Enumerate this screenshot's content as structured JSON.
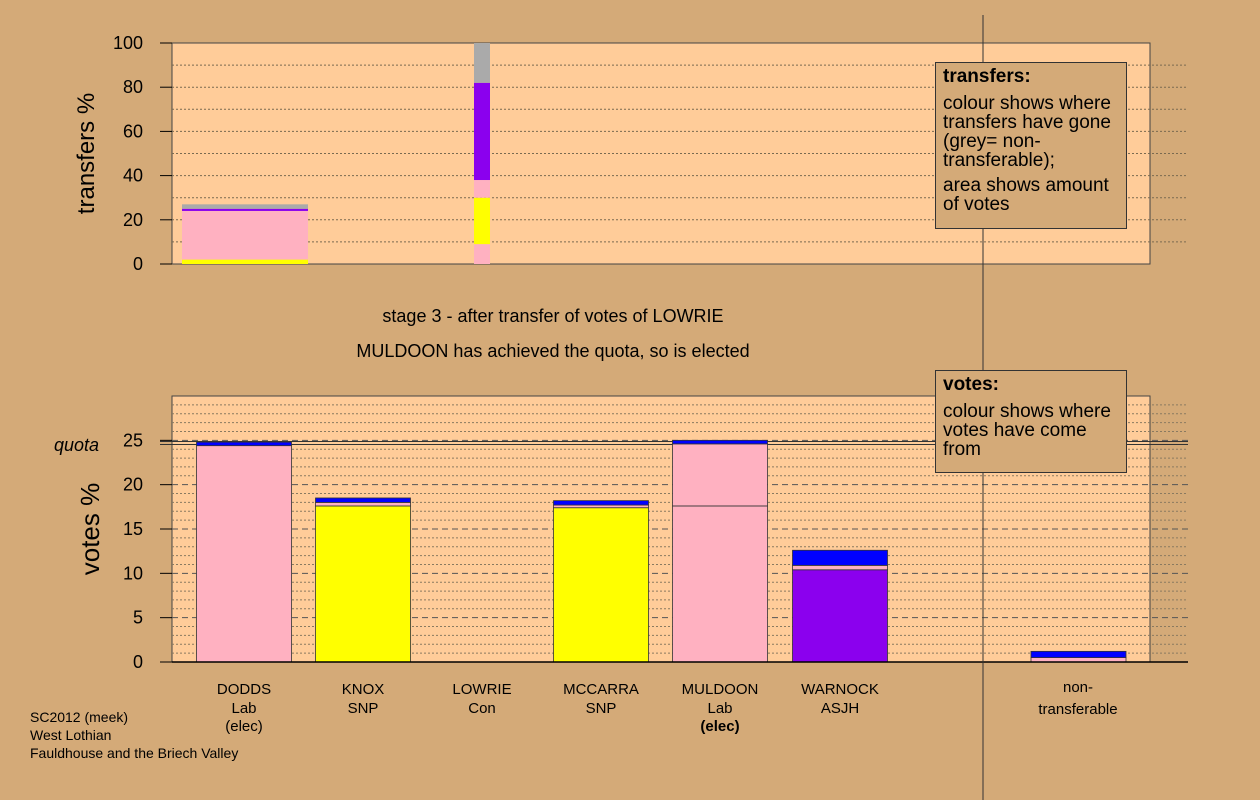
{
  "stage_title": "stage 3 - after transfer of votes of LOWRIE",
  "elected_note": "MULDOON has achieved the quota, so is elected",
  "legend_transfers": {
    "title": "transfers:",
    "p1": "colour shows where transfers have gone (grey= non-transferable);",
    "p2": "area shows amount of votes"
  },
  "legend_votes": {
    "title": "votes:",
    "p1": "colour shows where votes have come from"
  },
  "footer": [
    "SC2012 (meek)",
    "West Lothian",
    "Fauldhouse and the Briech Valley"
  ],
  "colors": {
    "Lab": "#ffb1c1",
    "SNP": "#ffff00",
    "ASJH": "#8b00ee",
    "Con": "#0000ff",
    "nontransferable": "#aaaaaa",
    "plot_bg": "#ffcc99",
    "page_bg": "#d4aa78"
  },
  "chart_data": [
    {
      "type": "bar",
      "ylabel": "transfers %",
      "ylim": [
        0,
        100
      ],
      "yticks": [
        "0",
        "20",
        "40",
        "60",
        "80",
        "100"
      ],
      "bars": [
        {
          "name": "previous-transfers",
          "segments": [
            {
              "party": "SNP",
              "from": 0,
              "to": 2
            },
            {
              "party": "Lab",
              "from": 2,
              "to": 24
            },
            {
              "party": "ASJH",
              "from": 24,
              "to": 25
            },
            {
              "party": "nontransferable",
              "from": 25,
              "to": 27
            }
          ]
        },
        {
          "name": "LOWRIE-transfer",
          "segments": [
            {
              "party": "Lab",
              "from": 0,
              "to": 9
            },
            {
              "party": "SNP",
              "from": 9,
              "to": 30
            },
            {
              "party": "Lab",
              "from": 30,
              "to": 38
            },
            {
              "party": "ASJH",
              "from": 38,
              "to": 82
            },
            {
              "party": "nontransferable",
              "from": 82,
              "to": 100
            }
          ]
        }
      ]
    },
    {
      "type": "bar",
      "ylabel": "votes %",
      "ylim": [
        0,
        30
      ],
      "yticks": [
        "0",
        "5",
        "10",
        "15",
        "20",
        "25"
      ],
      "quota_label": "quota",
      "quota": 24.7,
      "candidates": [
        {
          "name": "DODDS",
          "party": "Lab",
          "status": "(elec)",
          "status_bold": false,
          "segments": [
            {
              "party": "Lab",
              "from": 0,
              "to": 24.4
            },
            {
              "party": "Con",
              "from": 24.4,
              "to": 24.8
            }
          ]
        },
        {
          "name": "KNOX",
          "party": "SNP",
          "status": "",
          "status_bold": false,
          "segments": [
            {
              "party": "SNP",
              "from": 0,
              "to": 17.6
            },
            {
              "party": "Lab",
              "from": 17.6,
              "to": 18.0
            },
            {
              "party": "Con",
              "from": 18.0,
              "to": 18.5
            }
          ]
        },
        {
          "name": "LOWRIE",
          "party": "Con",
          "status": "",
          "status_bold": false,
          "segments": []
        },
        {
          "name": "MCCARRA",
          "party": "SNP",
          "status": "",
          "status_bold": false,
          "segments": [
            {
              "party": "SNP",
              "from": 0,
              "to": 17.4
            },
            {
              "party": "Lab",
              "from": 17.4,
              "to": 17.7
            },
            {
              "party": "Con",
              "from": 17.7,
              "to": 18.2
            }
          ]
        },
        {
          "name": "MULDOON",
          "party": "Lab",
          "status": "(elec)",
          "status_bold": true,
          "segments": [
            {
              "party": "Lab",
              "from": 0,
              "to": 17.6
            },
            {
              "party": "Lab",
              "from": 17.6,
              "to": 24.6
            },
            {
              "party": "Con",
              "from": 24.6,
              "to": 25.0
            }
          ]
        },
        {
          "name": "WARNOCK",
          "party": "ASJH",
          "status": "",
          "status_bold": false,
          "segments": [
            {
              "party": "ASJH",
              "from": 0,
              "to": 10.4
            },
            {
              "party": "Lab",
              "from": 10.4,
              "to": 10.9
            },
            {
              "party": "Con",
              "from": 10.9,
              "to": 12.6
            }
          ]
        }
      ],
      "nontransferable": {
        "label_line1": "non-",
        "label_line2": "transferable",
        "segments": [
          {
            "party": "Lab",
            "from": 0,
            "to": 0.5
          },
          {
            "party": "Con",
            "from": 0.5,
            "to": 1.2
          }
        ]
      }
    }
  ]
}
